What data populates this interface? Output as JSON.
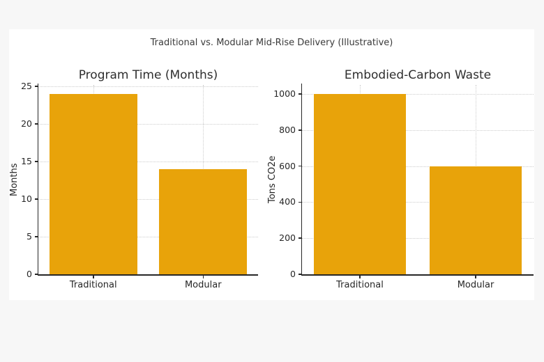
{
  "suptitle": "Traditional vs. Modular Mid-Rise Delivery (Illustrative)",
  "colors": {
    "bar": "#E8A30A",
    "axis": "#262626",
    "grid": "#cccccc",
    "figure_background": "#ffffff",
    "page_background": "#f7f7f7"
  },
  "chart_data": [
    {
      "type": "bar",
      "title": "Program Time (Months)",
      "categories": [
        "Traditional",
        "Modular"
      ],
      "values": [
        24,
        14
      ],
      "xlabel": "",
      "ylabel": "Months",
      "yticks": [
        0,
        5,
        10,
        15,
        20,
        25
      ],
      "ylim": [
        0,
        25.2
      ],
      "grid": true,
      "legend": false,
      "bar_color": "#E8A30A"
    },
    {
      "type": "bar",
      "title": "Embodied-Carbon Waste",
      "categories": [
        "Traditional",
        "Modular"
      ],
      "values": [
        1000,
        600
      ],
      "xlabel": "",
      "ylabel": "Tons CO2e",
      "yticks": [
        0,
        200,
        400,
        600,
        800,
        1000
      ],
      "ylim": [
        0,
        1050
      ],
      "grid": true,
      "legend": false,
      "bar_color": "#E8A30A"
    }
  ]
}
